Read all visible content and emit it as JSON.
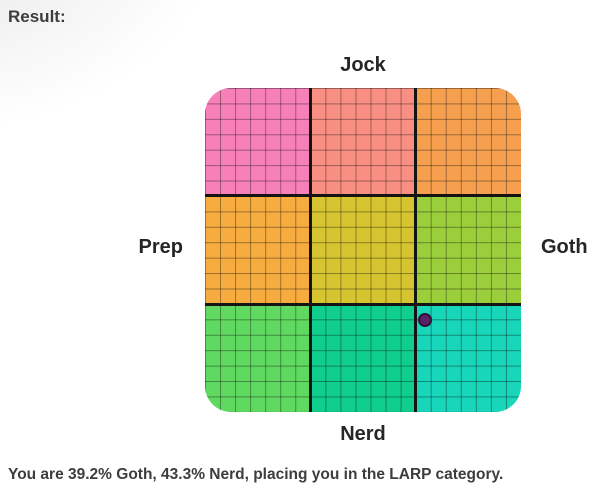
{
  "header": {
    "title": "Result:"
  },
  "chart": {
    "labels": {
      "top": "Jock",
      "bottom": "Nerd",
      "left": "Prep",
      "right": "Goth"
    }
  },
  "footer": {
    "result_text": "You are 39.2% Goth, 43.3% Nerd, placing you in the LARP category."
  },
  "chart_data": {
    "type": "scatter",
    "x_axis": {
      "left_label": "Prep",
      "right_label": "Goth",
      "range": [
        -100,
        100
      ]
    },
    "y_axis": {
      "top_label": "Jock",
      "bottom_label": "Nerd",
      "range": [
        -100,
        100
      ]
    },
    "points": [
      {
        "goth_pct": 39.2,
        "nerd_pct": 43.3,
        "category": "LARP",
        "fill": "#5b2166",
        "stroke": "#2f1038"
      }
    ],
    "grid": {
      "major_divisions": 3,
      "minor_cells_per_side": 21,
      "minor_line_color": "rgba(10,10,10,0.38)",
      "major_line_color": "#141414"
    },
    "region_colors": [
      [
        "#f780b8",
        "#f98e82",
        "#f6a04f"
      ],
      [
        "#f6ac3f",
        "#d6c431",
        "#9bce3b"
      ],
      [
        "#5fd95f",
        "#10ce8e",
        "#17d6b9"
      ]
    ]
  }
}
